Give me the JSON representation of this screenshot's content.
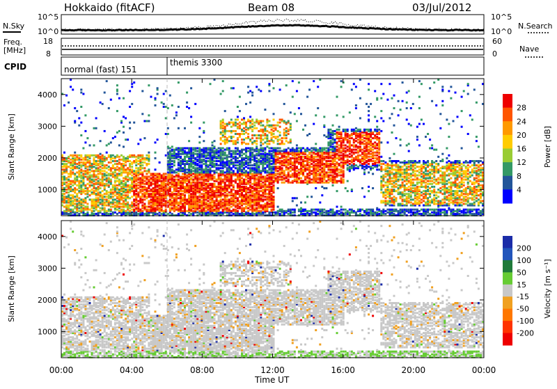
{
  "header": {
    "title": "Hokkaido (fitACF)",
    "beam": "Beam 08",
    "date": "03/Jul/2012"
  },
  "noise_panel": {
    "left_label": "N.Sky",
    "left_ticks": [
      "10^5",
      "10^0"
    ],
    "right_label": "N.Search",
    "right_ticks": [
      "10^5",
      "10^0"
    ]
  },
  "freq_panel": {
    "left_label_1": "Freq.",
    "left_label_2": "[MHz]",
    "left_ticks": [
      "18",
      "8"
    ],
    "right_label": "Nave",
    "right_ticks": [
      "60",
      "0"
    ]
  },
  "cpid_panel": {
    "label": "CPID",
    "segments": [
      "normal (fast) 151",
      "themis 3300"
    ]
  },
  "power_panel": {
    "ylabel": "Slant Range [km]",
    "yticks": [
      "4000",
      "3000",
      "2000",
      "1000"
    ],
    "colorbar_label": "Power [dB]",
    "colorbar_ticks": [
      "28",
      "24",
      "20",
      "16",
      "12",
      "8",
      "4"
    ],
    "colors": [
      "#ee0000",
      "#ff5500",
      "#ff9900",
      "#ffcc00",
      "#99cc33",
      "#339966",
      "#225599",
      "#0000ff"
    ]
  },
  "velocity_panel": {
    "ylabel": "Slant Range [km]",
    "yticks": [
      "4000",
      "3000",
      "2000",
      "1000"
    ],
    "colorbar_label": "Velocity [m s⁻¹]",
    "colorbar_ticks": [
      "200",
      "100",
      "50",
      "15",
      "-15",
      "-50",
      "-100",
      "-200"
    ],
    "colors": [
      "#1b2ca8",
      "#2255bb",
      "#1f7a3a",
      "#66cc33",
      "#c8c8c8",
      "#f0a020",
      "#ff7700",
      "#ff3300",
      "#ee0000"
    ]
  },
  "x_axis": {
    "label": "Time UT",
    "ticks": [
      "00:00",
      "04:00",
      "08:00",
      "12:00",
      "16:00",
      "20:00",
      "00:00"
    ]
  },
  "chart_data": {
    "type": "heatmap",
    "title": "Hokkaido (fitACF)",
    "xlabel": "Time UT",
    "ylabel": "Slant Range [km]",
    "x_range_hours": [
      0,
      24
    ],
    "ylim_km": [
      180,
      4500
    ],
    "power_colorbar_range_db": [
      0,
      30
    ],
    "velocity_colorbar_range": [
      -200,
      200
    ],
    "cpid_segments": [
      {
        "label": "normal (fast) 151",
        "start_hour": 0,
        "end_hour": 5.9
      },
      {
        "label": "themis 3300",
        "start_hour": 5.9,
        "end_hour": 24
      }
    ],
    "scatter_regions_power": [
      {
        "t0": 0,
        "t1": 5,
        "r0": 300,
        "r1": 2100,
        "level": "16-24"
      },
      {
        "t0": 4,
        "t1": 12,
        "r0": 300,
        "r1": 1500,
        "level": "24-28"
      },
      {
        "t0": 9,
        "t1": 13,
        "r0": 2400,
        "r1": 3200,
        "level": "20-28"
      },
      {
        "t0": 12,
        "t1": 16,
        "r0": 1200,
        "r1": 2200,
        "level": "24-28"
      },
      {
        "t0": 15.5,
        "t1": 18,
        "r0": 1800,
        "r1": 2800,
        "level": "24-28"
      },
      {
        "t0": 18,
        "t1": 24,
        "r0": 500,
        "r1": 1800,
        "level": "16-28"
      }
    ],
    "scatter_regions_velocity": [
      {
        "t0": 0,
        "t1": 24,
        "r0": 300,
        "r1": 2600,
        "level": "-15 to 15"
      },
      {
        "t0": 0,
        "t1": 24,
        "r0": 180,
        "r1": 400,
        "level": "15 to 50"
      }
    ]
  }
}
